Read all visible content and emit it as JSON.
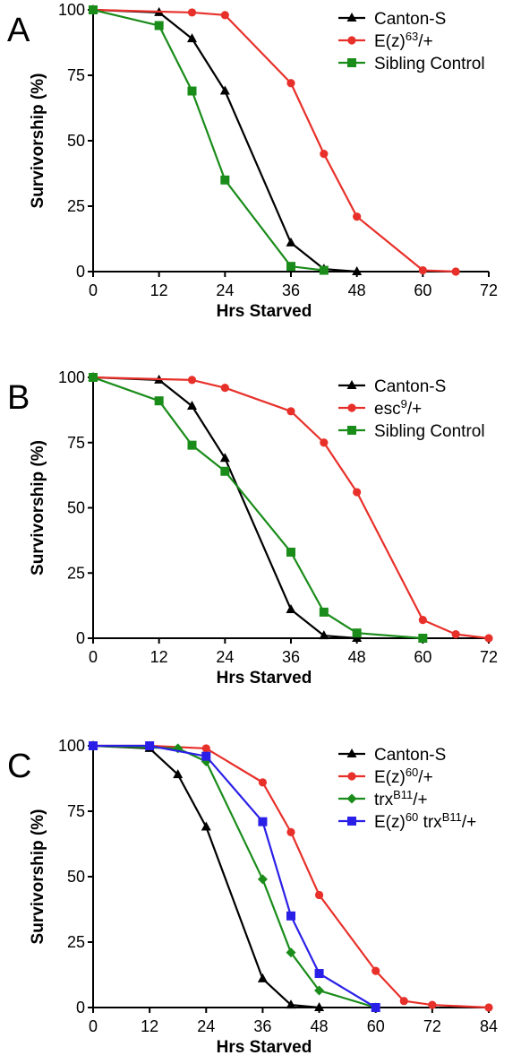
{
  "chart_data": [
    {
      "panel": "A",
      "type": "line",
      "xlabel": "Hrs Starved",
      "ylabel": "Survivorship (%)",
      "xlim": [
        0,
        72
      ],
      "ylim": [
        0,
        100
      ],
      "xticks": [
        "0",
        "12",
        "24",
        "36",
        "48",
        "60",
        "72"
      ],
      "yticks": [
        "0",
        "25",
        "50",
        "75",
        "100"
      ],
      "legend_position": "top-right",
      "grid": false,
      "series": [
        {
          "name": "Canton-S",
          "legend": [
            {
              "text": "Canton-S"
            }
          ],
          "color": "#000000",
          "marker": "triangle",
          "x": [
            0,
            12,
            18,
            24,
            36,
            42,
            48
          ],
          "y": [
            100,
            99,
            89,
            69,
            11,
            1,
            0
          ]
        },
        {
          "name": "E(z)63/+",
          "legend": [
            {
              "text": "E(z)"
            },
            {
              "text": "63",
              "sup": true
            },
            {
              "text": "/+"
            }
          ],
          "color": "#e8302a",
          "marker": "circle",
          "x": [
            0,
            18,
            24,
            36,
            42,
            48,
            60,
            66
          ],
          "y": [
            100,
            99,
            98,
            72,
            45,
            21,
            0.5,
            0
          ]
        },
        {
          "name": "Sibling Control",
          "legend": [
            {
              "text": "Sibling Control"
            }
          ],
          "color": "#1a8c1a",
          "marker": "square",
          "x": [
            0,
            12,
            18,
            24,
            36,
            42
          ],
          "y": [
            100,
            94,
            69,
            35,
            2,
            0.5
          ]
        }
      ]
    },
    {
      "panel": "B",
      "type": "line",
      "xlabel": "Hrs Starved",
      "ylabel": "Survivorship (%)",
      "xlim": [
        0,
        72
      ],
      "ylim": [
        0,
        100
      ],
      "xticks": [
        "0",
        "12",
        "24",
        "36",
        "48",
        "60",
        "72"
      ],
      "yticks": [
        "0",
        "25",
        "50",
        "75",
        "100"
      ],
      "legend_position": "top-right",
      "grid": false,
      "series": [
        {
          "name": "Canton-S",
          "legend": [
            {
              "text": "Canton-S"
            }
          ],
          "color": "#000000",
          "marker": "triangle",
          "x": [
            0,
            12,
            18,
            24,
            36,
            42,
            48
          ],
          "y": [
            100,
            99,
            89,
            69,
            11,
            1,
            0
          ]
        },
        {
          "name": "esc9/+",
          "legend": [
            {
              "text": "esc"
            },
            {
              "text": "9",
              "sup": true
            },
            {
              "text": "/+"
            }
          ],
          "color": "#e8302a",
          "marker": "circle",
          "x": [
            0,
            18,
            24,
            36,
            42,
            48,
            60,
            66,
            72
          ],
          "y": [
            100,
            99,
            96,
            87,
            75,
            56,
            7,
            1.5,
            0
          ]
        },
        {
          "name": "Sibling Control",
          "legend": [
            {
              "text": "Sibling Control"
            }
          ],
          "color": "#1a8c1a",
          "marker": "square",
          "x": [
            0,
            12,
            18,
            24,
            36,
            42,
            48,
            60
          ],
          "y": [
            100,
            91,
            74,
            64,
            33,
            10,
            2,
            0
          ]
        }
      ]
    },
    {
      "panel": "C",
      "type": "line",
      "xlabel": "Hrs Starved",
      "ylabel": "Survivorship (%)",
      "xlim": [
        0,
        84
      ],
      "ylim": [
        0,
        100
      ],
      "xticks": [
        "0",
        "12",
        "24",
        "36",
        "48",
        "60",
        "72",
        "84"
      ],
      "yticks": [
        "0",
        "25",
        "50",
        "75",
        "100"
      ],
      "legend_position": "top-right",
      "grid": false,
      "series": [
        {
          "name": "Canton-S",
          "legend": [
            {
              "text": "Canton-S"
            }
          ],
          "color": "#000000",
          "marker": "triangle",
          "x": [
            0,
            12,
            18,
            24,
            36,
            42,
            48
          ],
          "y": [
            100,
            99,
            89,
            69,
            11,
            1,
            0
          ]
        },
        {
          "name": "E(z)60/+",
          "legend": [
            {
              "text": "E(z)"
            },
            {
              "text": "60",
              "sup": true
            },
            {
              "text": "/+"
            }
          ],
          "color": "#e8302a",
          "marker": "circle",
          "x": [
            0,
            12,
            24,
            36,
            42,
            48,
            60,
            66,
            72,
            84
          ],
          "y": [
            100,
            100,
            99,
            86,
            67,
            43,
            14,
            2.5,
            1,
            0
          ]
        },
        {
          "name": "trxB11/+",
          "legend": [
            {
              "text": "trx"
            },
            {
              "text": "B11",
              "sup": true
            },
            {
              "text": "/+"
            }
          ],
          "color": "#1a8c1a",
          "marker": "diamond",
          "x": [
            0,
            18,
            24,
            36,
            42,
            48,
            60
          ],
          "y": [
            100,
            99,
            94,
            49,
            21,
            6.5,
            0
          ]
        },
        {
          "name": "E(z)60 trxB11/+",
          "legend": [
            {
              "text": "E(z)"
            },
            {
              "text": "60",
              "sup": true
            },
            {
              "text": " trx"
            },
            {
              "text": "B11",
              "sup": true
            },
            {
              "text": "/+"
            }
          ],
          "color": "#2a1fe6",
          "marker": "square",
          "x": [
            0,
            12,
            24,
            36,
            42,
            48,
            60
          ],
          "y": [
            100,
            100,
            96,
            71,
            35,
            13,
            0
          ]
        }
      ]
    }
  ]
}
